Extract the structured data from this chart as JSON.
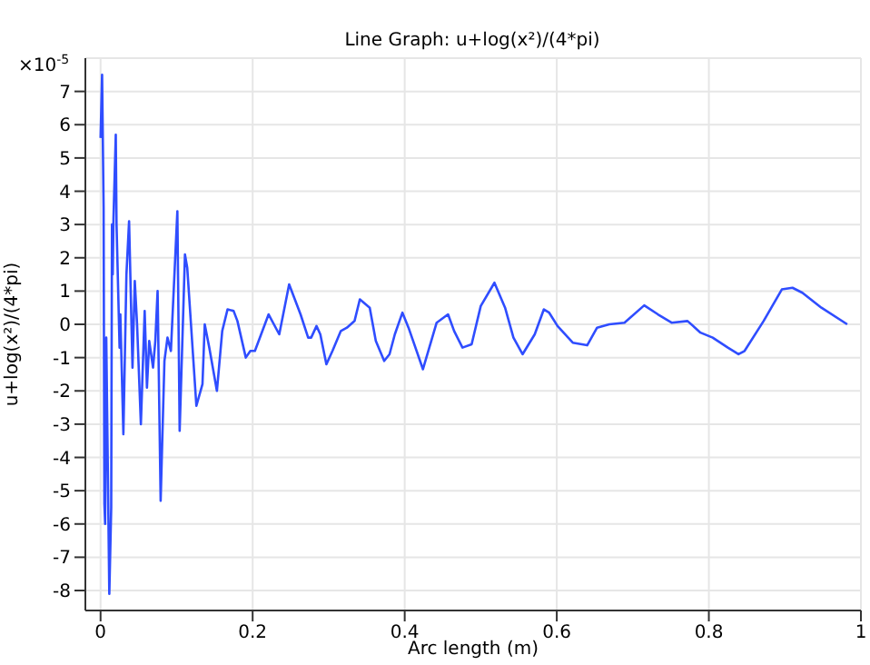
{
  "chart_data": {
    "type": "line",
    "title": "Line Graph: u+log(x²)/(4*pi)",
    "xlabel": "Arc length (m)",
    "ylabel": "u+log(x²)/(4*pi)",
    "annotations": [
      "×10$^{-5}$"
    ],
    "x": [
      0,
      0.002,
      0.004,
      0.005,
      0.006,
      0.0075,
      0.0115,
      0.014,
      0.015,
      0.016,
      0.017,
      0.02,
      0.021,
      0.025,
      0.026,
      0.03,
      0.034,
      0.0375,
      0.042,
      0.045,
      0.048,
      0.053,
      0.058,
      0.061,
      0.064,
      0.069,
      0.072,
      0.075,
      0.079,
      0.084,
      0.088,
      0.0925,
      0.101,
      0.104,
      0.111,
      0.114,
      0.126,
      0.134,
      0.137,
      0.143,
      0.153,
      0.16,
      0.167,
      0.175,
      0.18,
      0.191,
      0.197,
      0.203,
      0.221,
      0.235,
      0.248,
      0.263,
      0.273,
      0.277,
      0.284,
      0.289,
      0.297,
      0.305,
      0.316,
      0.324,
      0.334,
      0.341,
      0.354,
      0.362,
      0.373,
      0.38,
      0.387,
      0.397,
      0.405,
      0.424,
      0.442,
      0.457,
      0.465,
      0.476,
      0.488,
      0.5,
      0.518,
      0.532,
      0.543,
      0.555,
      0.571,
      0.583,
      0.59,
      0.601,
      0.621,
      0.64,
      0.653,
      0.669,
      0.689,
      0.715,
      0.733,
      0.751,
      0.772,
      0.789,
      0.805,
      0.825,
      0.839,
      0.847,
      0.872,
      0.896,
      0.91,
      0.923,
      0.948,
      0.982
    ],
    "series": [
      {
        "color": "#2f4dff",
        "values": [
          5.6,
          7.5,
          3.5,
          -5.4,
          -6.0,
          -0.4,
          -8.1,
          -5.5,
          3.0,
          1.5,
          3.2,
          5.7,
          3.0,
          -0.7,
          0.3,
          -3.3,
          1.5,
          3.1,
          -1.3,
          1.3,
          0,
          -3.0,
          0.4,
          -1.9,
          -0.5,
          -1.3,
          -0.5,
          1.0,
          -5.3,
          -1.1,
          -0.4,
          -0.8,
          3.4,
          -3.2,
          2.1,
          1.7,
          -2.45,
          -1.8,
          0,
          -0.7,
          -2.0,
          -0.2,
          0.45,
          0.4,
          0.1,
          -1.0,
          -0.8,
          -0.8,
          0.3,
          -0.3,
          1.2,
          0.3,
          -0.4,
          -0.4,
          -0.05,
          -0.3,
          -1.2,
          -0.8,
          -0.2,
          -0.1,
          0.1,
          0.75,
          0.5,
          -0.5,
          -1.1,
          -0.9,
          -0.3,
          0.35,
          -0.1,
          -1.35,
          0.05,
          0.3,
          -0.2,
          -0.7,
          -0.6,
          0.55,
          1.25,
          0.5,
          -0.4,
          -0.9,
          -0.3,
          0.45,
          0.35,
          -0.05,
          -0.55,
          -0.63,
          -0.1,
          0,
          0.05,
          0.57,
          0.3,
          0.05,
          0.1,
          -0.25,
          -0.4,
          -0.7,
          -0.9,
          -0.8,
          0.1,
          1.05,
          1.1,
          0.95,
          0.5,
          0
        ]
      }
    ],
    "xlim": [
      -0.02,
      1.0
    ],
    "xticks": [
      0,
      0.2,
      0.4,
      0.6,
      0.8,
      1
    ],
    "ylim": [
      -8.6,
      8
    ],
    "yticks": [
      -8,
      -7,
      -6,
      -5,
      -4,
      -3,
      -2,
      -1,
      0,
      1,
      2,
      3,
      4,
      5,
      6,
      7
    ],
    "grid": true
  }
}
